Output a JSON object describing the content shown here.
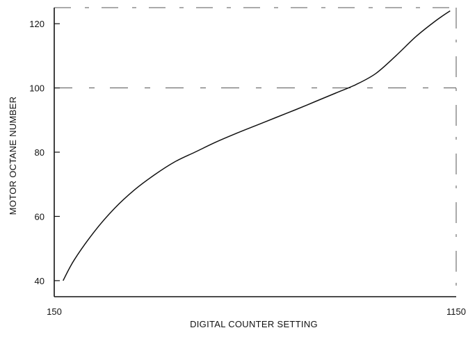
{
  "chart_data": {
    "type": "line",
    "title": "",
    "xlabel": "DIGITAL  COUNTER SETTING",
    "ylabel": "MOTOR  OCTANE  NUMBER",
    "xlim": [
      150,
      1150
    ],
    "ylim": [
      35,
      125
    ],
    "x_ticks": [
      150,
      1150
    ],
    "x_tick_labels": [
      "150",
      "1150"
    ],
    "y_ticks": [
      40,
      60,
      80,
      100,
      120
    ],
    "y_tick_labels": [
      "40",
      "60",
      "80",
      "100",
      "120"
    ],
    "grid": false,
    "legend": "none",
    "colors": {
      "line": "#111111",
      "axis": "#111111",
      "dash": "#555555"
    },
    "series": [
      {
        "x": [
          172,
          200,
          250,
          300,
          350,
          400,
          450,
          500,
          550,
          600,
          650,
          700,
          750,
          800,
          850,
          900,
          950,
          1000,
          1050,
          1100,
          1135
        ],
        "y": [
          40,
          46.5,
          55.3,
          62.5,
          68.3,
          73,
          77,
          80,
          83,
          85.7,
          88.2,
          90.7,
          93.2,
          95.8,
          98.4,
          101,
          104.5,
          110,
          116,
          121,
          124
        ]
      }
    ]
  }
}
